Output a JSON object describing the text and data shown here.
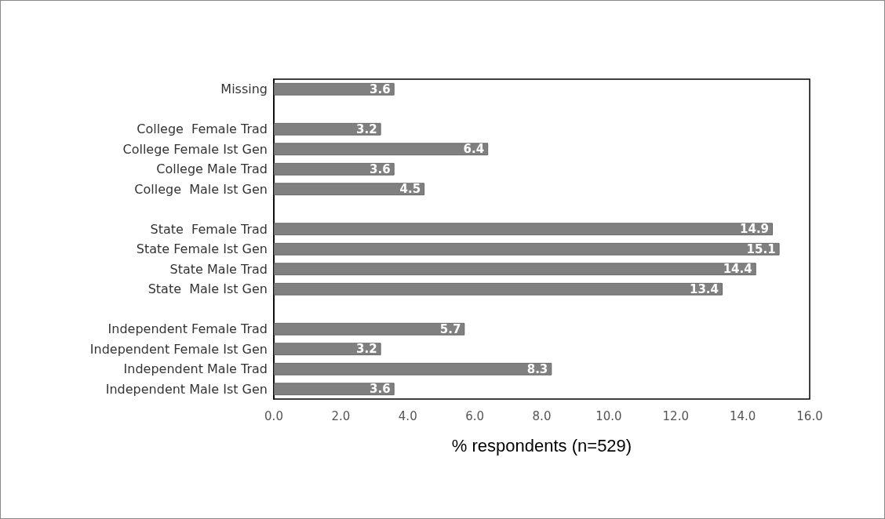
{
  "chart_data": {
    "type": "bar",
    "orientation": "horizontal",
    "xlabel": "% respondents (n=529)",
    "categories": [
      "Missing",
      null,
      "College  Female Trad",
      "College Female Ist Gen",
      "College Male Trad",
      "College  Male Ist Gen",
      null,
      "State  Female Trad",
      "State Female Ist Gen",
      "State Male Trad",
      "State  Male Ist Gen",
      null,
      "Independent Female Trad",
      "Independent Female Ist Gen",
      "Independent Male Trad",
      "Independent Male Ist Gen"
    ],
    "values": [
      3.6,
      null,
      3.2,
      6.4,
      3.6,
      4.5,
      null,
      14.9,
      15.1,
      14.4,
      13.4,
      null,
      5.7,
      3.2,
      8.3,
      3.6
    ],
    "color": "#808080",
    "xlim": [
      0,
      16
    ],
    "xticks": [
      {
        "value": 0,
        "label": "0.0"
      },
      {
        "value": 2,
        "label": "2.0"
      },
      {
        "value": 4,
        "label": "4.0"
      },
      {
        "value": 6,
        "label": "6.0"
      },
      {
        "value": 8,
        "label": "8.0"
      },
      {
        "value": 10,
        "label": "10.0"
      },
      {
        "value": 12,
        "label": "12.0"
      },
      {
        "value": 14,
        "label": "14.0"
      },
      {
        "value": 16,
        "label": "16.0"
      }
    ],
    "data_labels": true,
    "grid": false
  }
}
